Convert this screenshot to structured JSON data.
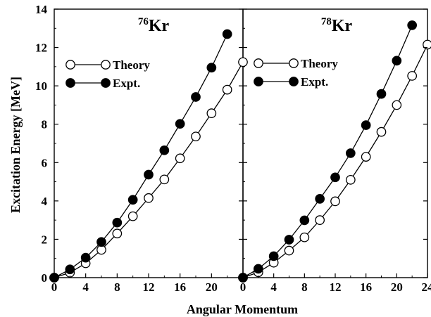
{
  "chart_data": {
    "type": "line",
    "xlabel": "Angular Momentum",
    "ylabel": "Excitation Energy [MeV]",
    "ylim": [
      0,
      14
    ],
    "yticks": [
      0,
      2,
      4,
      6,
      8,
      10,
      12,
      14
    ],
    "panels": [
      {
        "title_mass": "76",
        "title_element": "Kr",
        "xlim": [
          0,
          24
        ],
        "xticks": [
          0,
          4,
          8,
          12,
          16,
          20
        ],
        "legend_position": "upper-left",
        "series": [
          {
            "name": "Theory",
            "marker": "open-circle",
            "x": [
              0,
              2,
              4,
              6,
              8,
              10,
              12,
              14,
              16,
              18,
              20,
              22,
              24
            ],
            "y": [
              0,
              0.26,
              0.75,
              1.45,
              2.3,
              3.2,
              4.15,
              5.12,
              6.22,
              7.36,
              8.57,
              9.8,
              11.24
            ]
          },
          {
            "name": "Expt.",
            "marker": "filled-circle",
            "x": [
              0,
              2,
              4,
              6,
              8,
              10,
              12,
              14,
              16,
              18,
              20,
              22
            ],
            "y": [
              0,
              0.43,
              1.04,
              1.86,
              2.87,
              4.06,
              5.37,
              6.64,
              8.02,
              9.42,
              10.95,
              12.7
            ]
          }
        ]
      },
      {
        "title_mass": "78",
        "title_element": "Kr",
        "xlim": [
          0,
          24
        ],
        "xticks": [
          0,
          4,
          8,
          12,
          16,
          20,
          24
        ],
        "legend_position": "upper-left",
        "series": [
          {
            "name": "Theory",
            "marker": "open-circle",
            "x": [
              0,
              2,
              4,
              6,
              8,
              10,
              12,
              14,
              16,
              18,
              20,
              22,
              24
            ],
            "y": [
              0,
              0.28,
              0.78,
              1.41,
              2.1,
              3.0,
              3.98,
              5.1,
              6.3,
              7.6,
              9.0,
              10.52,
              12.15
            ]
          },
          {
            "name": "Expt.",
            "marker": "filled-circle",
            "x": [
              0,
              2,
              4,
              6,
              8,
              10,
              12,
              14,
              16,
              18,
              20,
              22
            ],
            "y": [
              0,
              0.46,
              1.12,
              1.98,
              2.99,
              4.11,
              5.23,
              6.49,
              7.95,
              9.58,
              11.31,
              13.16
            ]
          }
        ]
      }
    ]
  }
}
